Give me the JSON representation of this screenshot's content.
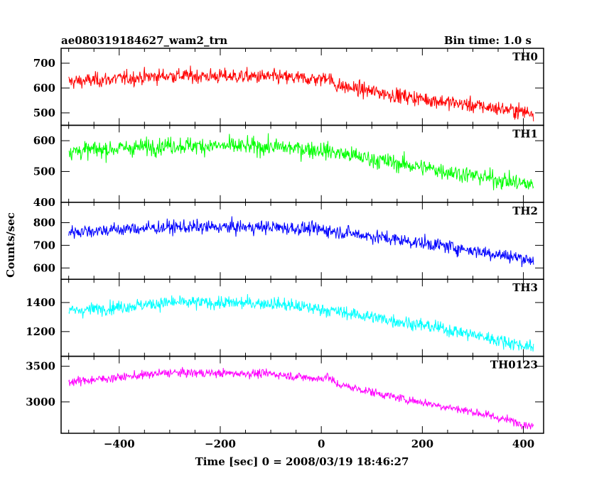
{
  "header": {
    "title": "ae080319184627_wam2_trn",
    "bin_time": "Bin time: 1.0 s"
  },
  "chart_data": {
    "type": "line",
    "xlabel": "Time [sec] 0 = 2008/03/19 18:46:27",
    "ylabel": "Counts/sec",
    "xlim": [
      -515,
      440
    ],
    "x_ticks": [
      -400,
      -200,
      0,
      200,
      400
    ],
    "x_tick_labels": [
      "−400",
      "−200",
      "0",
      "200",
      "400"
    ],
    "x_range": [
      -500,
      420
    ],
    "panels": [
      {
        "name": "TH0",
        "color": "#ff0000",
        "ylim": [
          450,
          760
        ],
        "y_ticks": [
          500,
          600,
          700
        ],
        "y_tick_labels": [
          "500",
          "600",
          "700"
        ],
        "trend": [
          [
            -500,
            625
          ],
          [
            -300,
            650
          ],
          [
            -100,
            645
          ],
          [
            0,
            635
          ],
          [
            10,
            650
          ],
          [
            30,
            610
          ],
          [
            150,
            570
          ],
          [
            300,
            530
          ],
          [
            420,
            500
          ]
        ],
        "noise": 30
      },
      {
        "name": "TH1",
        "color": "#00ff00",
        "ylim": [
          400,
          650
        ],
        "y_ticks": [
          400,
          500,
          600
        ],
        "y_tick_labels": [
          "400",
          "500",
          "600"
        ],
        "trend": [
          [
            -500,
            565
          ],
          [
            -300,
            585
          ],
          [
            -100,
            580
          ],
          [
            0,
            570
          ],
          [
            100,
            540
          ],
          [
            250,
            500
          ],
          [
            420,
            455
          ]
        ],
        "noise": 28
      },
      {
        "name": "TH2",
        "color": "#0000ff",
        "ylim": [
          550,
          890
        ],
        "y_ticks": [
          600,
          700,
          800
        ],
        "y_tick_labels": [
          "600",
          "700",
          "800"
        ],
        "trend": [
          [
            -500,
            760
          ],
          [
            -300,
            780
          ],
          [
            -100,
            780
          ],
          [
            0,
            770
          ],
          [
            100,
            740
          ],
          [
            250,
            695
          ],
          [
            420,
            635
          ]
        ],
        "noise": 30
      },
      {
        "name": "TH3",
        "color": "#00ffff",
        "ylim": [
          1030,
          1560
        ],
        "y_ticks": [
          1200,
          1400
        ],
        "y_tick_labels": [
          "1200",
          "1400"
        ],
        "trend": [
          [
            -500,
            1340
          ],
          [
            -300,
            1400
          ],
          [
            -100,
            1395
          ],
          [
            0,
            1355
          ],
          [
            100,
            1300
          ],
          [
            250,
            1215
          ],
          [
            420,
            1090
          ]
        ],
        "noise": 45
      },
      {
        "name": "TH0123",
        "color": "#ff00ff",
        "ylim": [
          2560,
          3640
        ],
        "y_ticks": [
          3000,
          3500
        ],
        "y_tick_labels": [
          "3000",
          "3500"
        ],
        "trend": [
          [
            -500,
            3280
          ],
          [
            -300,
            3410
          ],
          [
            -100,
            3395
          ],
          [
            0,
            3320
          ],
          [
            10,
            3370
          ],
          [
            30,
            3250
          ],
          [
            150,
            3060
          ],
          [
            300,
            2860
          ],
          [
            420,
            2660
          ]
        ],
        "noise": 60
      }
    ]
  }
}
